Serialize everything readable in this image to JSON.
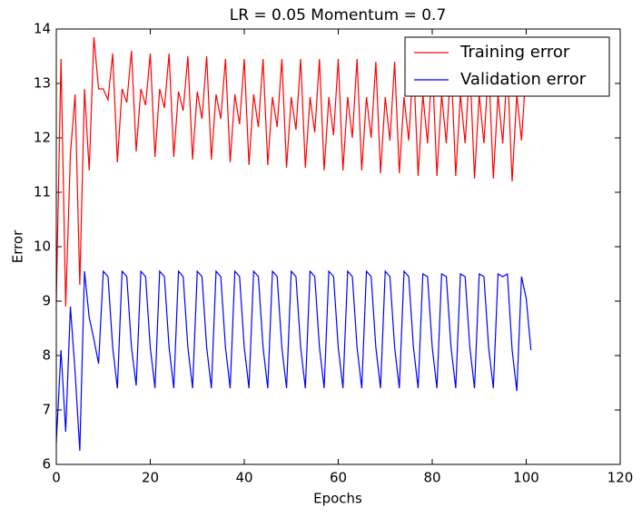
{
  "chart_data": {
    "type": "line",
    "title": "LR = 0.05 Momentum = 0.7",
    "xlabel": "Epochs",
    "ylabel": "Error",
    "x": [
      0,
      1,
      2,
      3,
      4,
      5,
      6,
      7,
      8,
      9,
      10,
      11,
      12,
      13,
      14,
      15,
      16,
      17,
      18,
      19,
      20,
      21,
      22,
      23,
      24,
      25,
      26,
      27,
      28,
      29,
      30,
      31,
      32,
      33,
      34,
      35,
      36,
      37,
      38,
      39,
      40,
      41,
      42,
      43,
      44,
      45,
      46,
      47,
      48,
      49,
      50,
      51,
      52,
      53,
      54,
      55,
      56,
      57,
      58,
      59,
      60,
      61,
      62,
      63,
      64,
      65,
      66,
      67,
      68,
      69,
      70,
      71,
      72,
      73,
      74,
      75,
      76,
      77,
      78,
      79,
      80,
      81,
      82,
      83,
      84,
      85,
      86,
      87,
      88,
      89,
      90,
      91,
      92,
      93,
      94,
      95,
      96,
      97,
      98,
      99,
      100,
      101
    ],
    "series": [
      {
        "name": "Training error",
        "color": "#ff0000",
        "values": [
          9.0,
          13.45,
          8.9,
          11.7,
          12.8,
          9.3,
          12.9,
          11.4,
          13.85,
          12.9,
          12.9,
          12.7,
          13.55,
          11.55,
          12.9,
          12.65,
          13.6,
          11.75,
          12.9,
          12.6,
          13.55,
          11.65,
          12.9,
          12.55,
          13.55,
          11.65,
          12.85,
          12.5,
          13.5,
          11.6,
          12.85,
          12.35,
          13.5,
          11.6,
          12.8,
          12.35,
          13.45,
          11.55,
          12.8,
          12.25,
          13.45,
          11.5,
          12.8,
          12.2,
          13.45,
          11.5,
          12.75,
          12.2,
          13.45,
          11.45,
          12.75,
          12.15,
          13.45,
          11.45,
          12.75,
          12.1,
          13.45,
          11.4,
          12.75,
          12.05,
          13.45,
          11.4,
          12.75,
          12.0,
          13.45,
          11.4,
          12.75,
          12.0,
          13.4,
          11.35,
          12.75,
          11.95,
          13.4,
          11.35,
          12.75,
          11.95,
          13.4,
          11.3,
          12.8,
          11.9,
          13.4,
          11.3,
          12.8,
          11.9,
          13.4,
          11.3,
          12.8,
          11.9,
          13.35,
          11.25,
          12.8,
          11.9,
          13.35,
          11.25,
          12.8,
          11.9,
          13.3,
          11.2,
          12.8,
          11.95,
          13.3,
          12.9
        ]
      },
      {
        "name": "Validation error",
        "color": "#0000ff",
        "values": [
          6.4,
          8.1,
          6.6,
          8.9,
          7.7,
          6.25,
          9.55,
          8.7,
          8.3,
          7.85,
          9.55,
          9.45,
          8.15,
          7.4,
          9.55,
          9.45,
          8.15,
          7.45,
          9.55,
          9.45,
          8.15,
          7.4,
          9.55,
          9.45,
          8.15,
          7.4,
          9.55,
          9.45,
          8.15,
          7.4,
          9.55,
          9.45,
          8.15,
          7.4,
          9.55,
          9.45,
          8.15,
          7.4,
          9.55,
          9.45,
          8.15,
          7.4,
          9.55,
          9.45,
          8.15,
          7.4,
          9.55,
          9.45,
          8.15,
          7.4,
          9.55,
          9.45,
          8.15,
          7.4,
          9.55,
          9.45,
          8.15,
          7.4,
          9.55,
          9.45,
          8.15,
          7.4,
          9.55,
          9.45,
          8.15,
          7.4,
          9.55,
          9.45,
          8.15,
          7.4,
          9.55,
          9.45,
          8.15,
          7.4,
          9.55,
          9.45,
          8.15,
          7.4,
          9.5,
          9.45,
          8.15,
          7.4,
          9.5,
          9.45,
          8.15,
          7.4,
          9.5,
          9.45,
          8.15,
          7.4,
          9.5,
          9.45,
          8.15,
          7.4,
          9.5,
          9.45,
          9.5,
          8.1,
          7.35,
          9.45,
          9.05,
          8.1
        ]
      }
    ],
    "xlim": [
      0,
      120
    ],
    "xticks": [
      0,
      20,
      40,
      60,
      80,
      100,
      120
    ],
    "ylim": [
      6,
      14
    ],
    "yticks": [
      6,
      7,
      8,
      9,
      10,
      11,
      12,
      13,
      14
    ],
    "legend": "upper right"
  }
}
